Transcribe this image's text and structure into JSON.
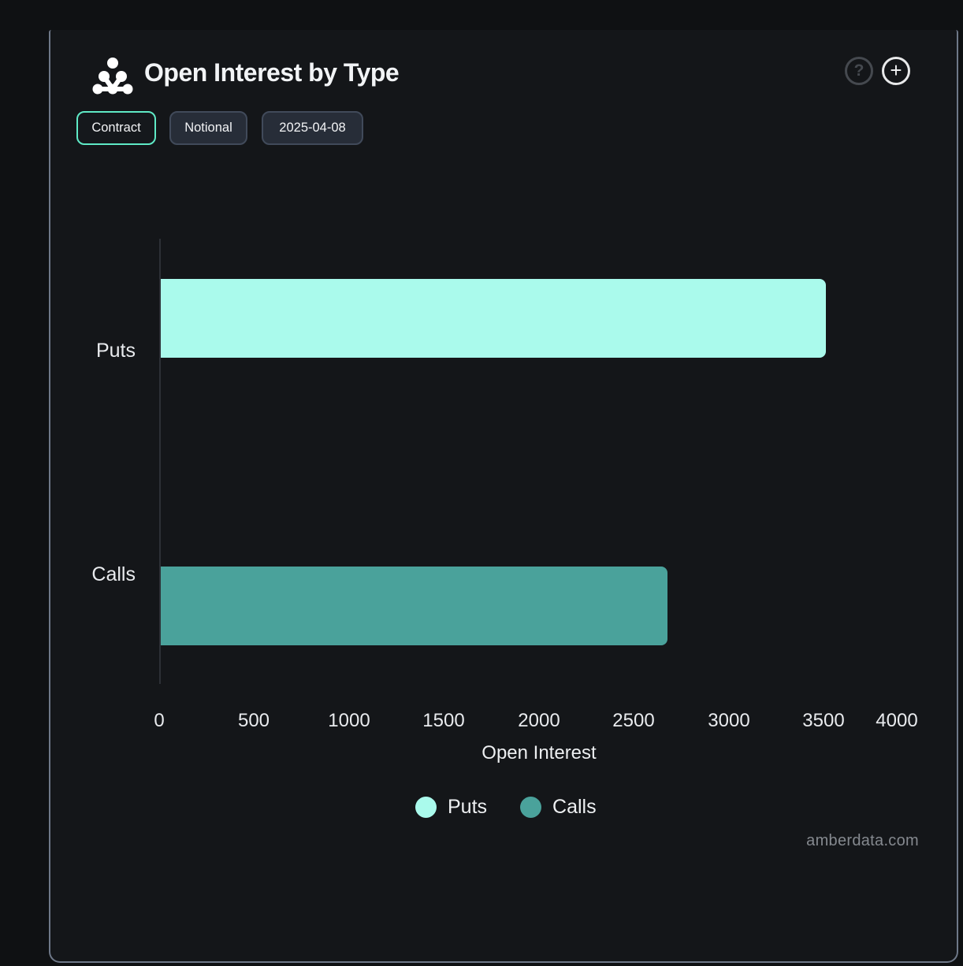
{
  "header": {
    "title": "Open Interest by Type"
  },
  "icons": {
    "help_glyph": "?",
    "add_glyph": "+"
  },
  "toolbar": {
    "buttons": [
      {
        "label": "Contract",
        "active": true
      },
      {
        "label": "Notional",
        "active": false
      },
      {
        "label": "2025-04-08",
        "active": false
      }
    ]
  },
  "chart_data": {
    "type": "bar",
    "orientation": "horizontal",
    "title": "Open Interest by Type",
    "categories": [
      "Puts",
      "Calls"
    ],
    "series": [
      {
        "name": "Puts",
        "value": 3500,
        "color": "#AAFAEC"
      },
      {
        "name": "Calls",
        "value": 2670,
        "color": "#4AA29B"
      }
    ],
    "xlabel": "Open Interest",
    "ylabel": "",
    "xlim": [
      0,
      4000
    ],
    "xticks": [
      0,
      500,
      1000,
      1500,
      2000,
      2500,
      3000,
      3500,
      4000
    ],
    "legend": [
      "Puts",
      "Calls"
    ],
    "legend_position": "bottom",
    "grid": false
  },
  "colors": {
    "accent": "#5FEAC6",
    "puts_bar": "#AAFAEC",
    "calls_bar": "#4AA29B",
    "panel_border": "#6E7888",
    "background": "#141619"
  },
  "watermark": "amberdata.com"
}
